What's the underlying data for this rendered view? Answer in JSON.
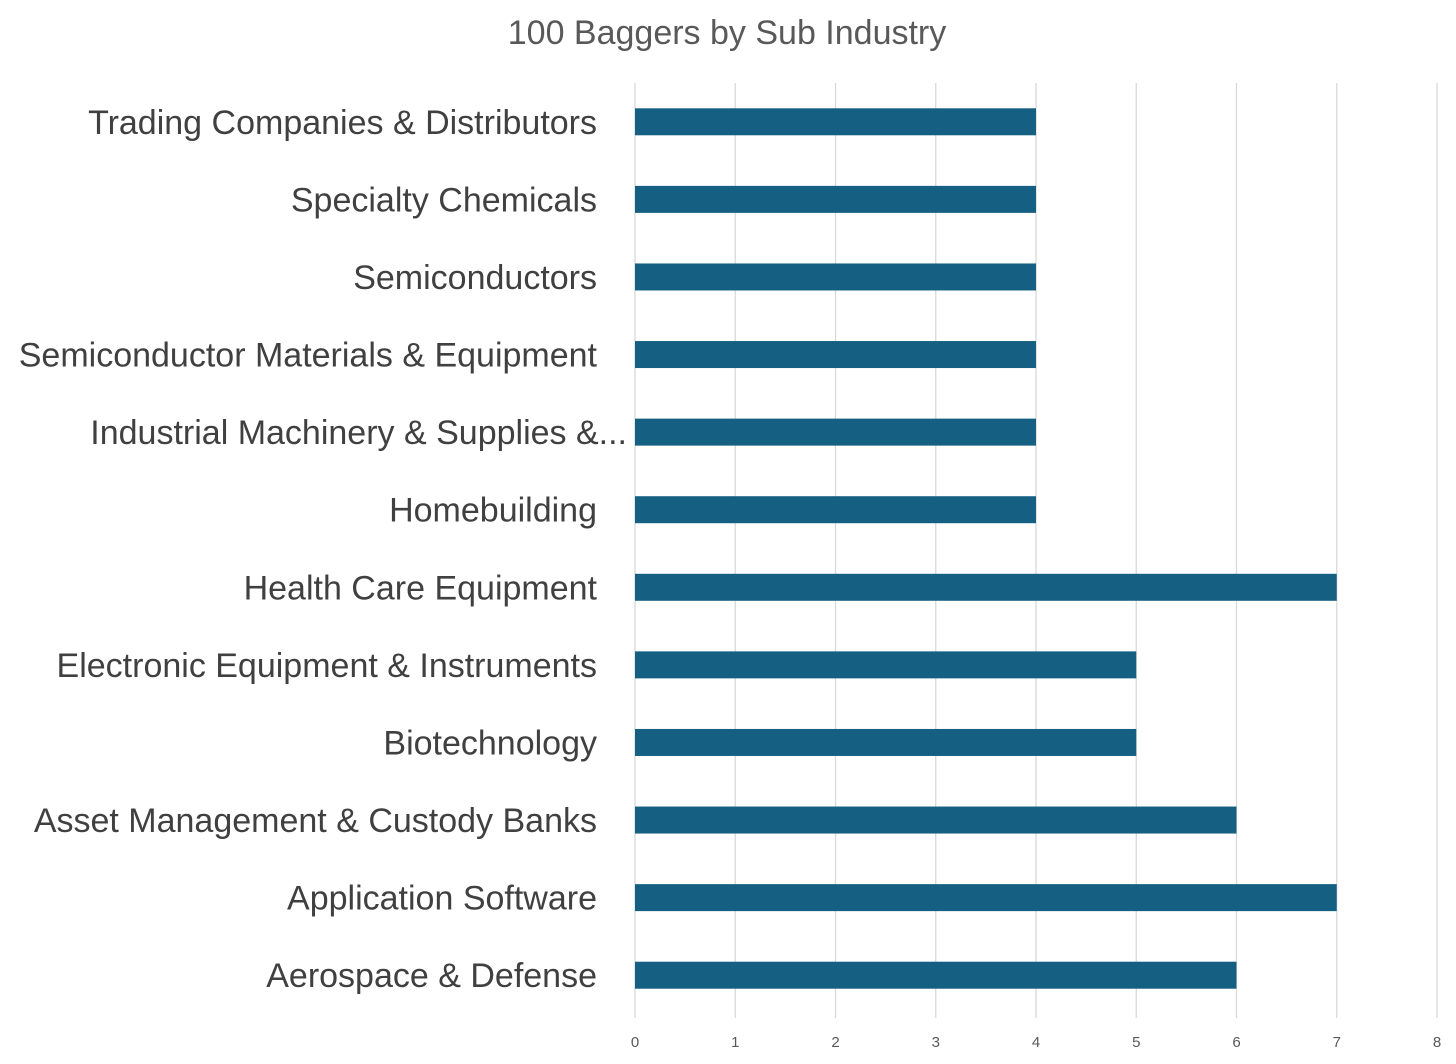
{
  "chart_data": {
    "type": "bar",
    "orientation": "horizontal",
    "title": "100 Baggers by Sub Industry",
    "xlabel": "",
    "ylabel": "",
    "categories": [
      "Aerospace & Defense",
      "Application Software",
      "Asset Management & Custody Banks",
      "Biotechnology",
      "Electronic Equipment & Instruments",
      "Health Care Equipment",
      "Homebuilding",
      "Industrial Machinery & Supplies &...",
      "Semiconductor Materials & Equipment",
      "Semiconductors",
      "Specialty Chemicals",
      "Trading Companies & Distributors"
    ],
    "values": [
      6,
      7,
      6,
      5,
      5,
      7,
      4,
      4,
      4,
      4,
      4,
      4
    ],
    "xlim": [
      0,
      8
    ],
    "xticks": [
      "0",
      "1",
      "2",
      "3",
      "4",
      "5",
      "6",
      "7",
      "8"
    ],
    "grid": true,
    "legend": "none",
    "bar_color": "#156082"
  }
}
